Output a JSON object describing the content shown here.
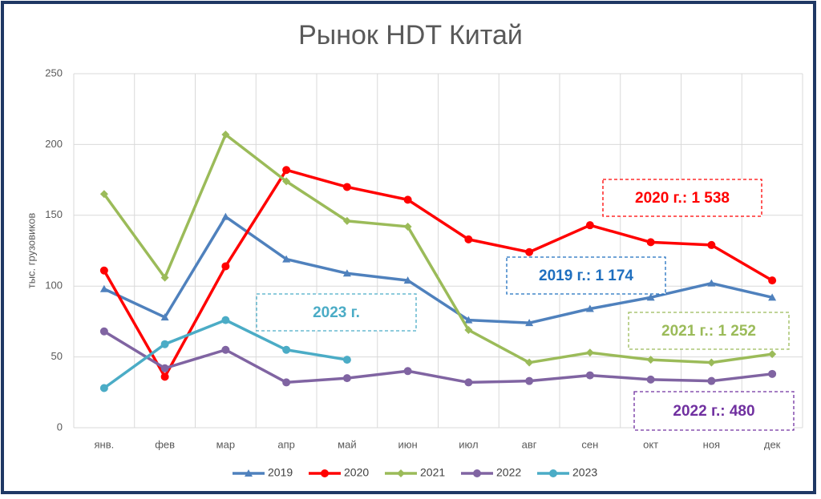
{
  "chart_data": {
    "type": "line",
    "title": "Рынок HDT Китай",
    "y_label": "тыс. грузовиков",
    "categories": [
      "янв.",
      "фев",
      "мар",
      "апр",
      "май",
      "июн",
      "июл",
      "авг",
      "сен",
      "окт",
      "ноя",
      "дек"
    ],
    "series": [
      {
        "name": "2019",
        "color": "#4f81bd",
        "marker": "triangle",
        "values": [
          98,
          78,
          149,
          119,
          109,
          104,
          76,
          74,
          84,
          92,
          102,
          92
        ]
      },
      {
        "name": "2020",
        "color": "#ff0000",
        "marker": "circle",
        "values": [
          111,
          36,
          114,
          182,
          170,
          161,
          133,
          124,
          143,
          131,
          129,
          104
        ]
      },
      {
        "name": "2021",
        "color": "#9bbb59",
        "marker": "diamond",
        "values": [
          165,
          106,
          207,
          174,
          146,
          142,
          69,
          46,
          53,
          48,
          46,
          52
        ]
      },
      {
        "name": "2022",
        "color": "#8064a2",
        "marker": "circle",
        "values": [
          68,
          42,
          55,
          32,
          35,
          40,
          32,
          33,
          37,
          34,
          33,
          38
        ]
      },
      {
        "name": "2023",
        "color": "#4bacc6",
        "marker": "circle",
        "values": [
          28,
          59,
          76,
          55,
          48,
          null,
          null,
          null,
          null,
          null,
          null,
          null
        ]
      }
    ],
    "annotations": [
      {
        "text": "2020 г.:  1 538",
        "color": "#ff0000"
      },
      {
        "text": "2019 г.: 1 174",
        "color": "#1f6fbf"
      },
      {
        "text": "2023 г.",
        "color": "#4bacc6"
      },
      {
        "text": "2021 г.: 1 252",
        "color": "#9bbb59"
      },
      {
        "text": "2022 г.: 480",
        "color": "#7030a0"
      }
    ],
    "ylim": [
      0,
      250
    ],
    "yticks": [
      0,
      50,
      100,
      150,
      200,
      250
    ],
    "grid": true,
    "legend": "bottom"
  }
}
